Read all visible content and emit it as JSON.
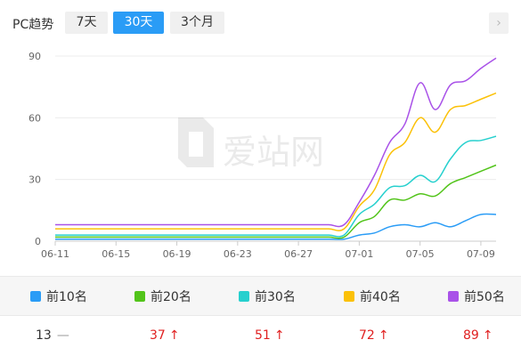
{
  "header": {
    "title": "PC趋势",
    "tabs": [
      {
        "label": "7天",
        "active": false
      },
      {
        "label": "30天",
        "active": true
      },
      {
        "label": "3个月",
        "active": false
      }
    ],
    "next_icon": "chevron-right-icon"
  },
  "watermark": {
    "text": "爱站网",
    "icon": "aizhan-logo-icon"
  },
  "chart_data": {
    "type": "line",
    "ylim": [
      0,
      90
    ],
    "yticks": [
      0,
      30,
      60,
      90
    ],
    "grid": true,
    "x_tick_labels": [
      "06-11",
      "06-15",
      "06-19",
      "06-23",
      "06-27",
      "07-01",
      "07-05",
      "07-09"
    ],
    "x": [
      "06-11",
      "06-12",
      "06-13",
      "06-14",
      "06-15",
      "06-16",
      "06-17",
      "06-18",
      "06-19",
      "06-20",
      "06-21",
      "06-22",
      "06-23",
      "06-24",
      "06-25",
      "06-26",
      "06-27",
      "06-28",
      "06-29",
      "06-30",
      "07-01",
      "07-02",
      "07-03",
      "07-04",
      "07-05",
      "07-06",
      "07-07",
      "07-08",
      "07-09",
      "07-10"
    ],
    "series": [
      {
        "name": "前10名",
        "color": "#2a9cf6",
        "values": [
          1,
          1,
          1,
          1,
          1,
          1,
          1,
          1,
          1,
          1,
          1,
          1,
          1,
          1,
          1,
          1,
          1,
          1,
          1,
          1,
          3,
          4,
          7,
          8,
          7,
          9,
          7,
          10,
          13,
          13
        ]
      },
      {
        "name": "前20名",
        "color": "#52c41a",
        "values": [
          2,
          2,
          2,
          2,
          2,
          2,
          2,
          2,
          2,
          2,
          2,
          2,
          2,
          2,
          2,
          2,
          2,
          2,
          2,
          2,
          9,
          12,
          20,
          20,
          23,
          22,
          28,
          31,
          34,
          37
        ]
      },
      {
        "name": "前30名",
        "color": "#26d0ce",
        "values": [
          3,
          3,
          3,
          3,
          3,
          3,
          3,
          3,
          3,
          3,
          3,
          3,
          3,
          3,
          3,
          3,
          3,
          3,
          3,
          3,
          13,
          18,
          26,
          27,
          32,
          29,
          40,
          48,
          49,
          51
        ]
      },
      {
        "name": "前40名",
        "color": "#fbc108",
        "values": [
          6,
          6,
          6,
          6,
          6,
          6,
          6,
          6,
          6,
          6,
          6,
          6,
          6,
          6,
          6,
          6,
          6,
          6,
          6,
          6,
          17,
          25,
          42,
          48,
          60,
          53,
          64,
          66,
          69,
          72
        ]
      },
      {
        "name": "前50名",
        "color": "#a952e8",
        "values": [
          8,
          8,
          8,
          8,
          8,
          8,
          8,
          8,
          8,
          8,
          8,
          8,
          8,
          8,
          8,
          8,
          8,
          8,
          8,
          8,
          19,
          32,
          48,
          57,
          77,
          64,
          76,
          78,
          84,
          89
        ]
      }
    ]
  },
  "legend": [
    {
      "label": "前10名",
      "color": "#2a9cf6"
    },
    {
      "label": "前20名",
      "color": "#52c41a"
    },
    {
      "label": "前30名",
      "color": "#26d0ce"
    },
    {
      "label": "前40名",
      "color": "#fbc108"
    },
    {
      "label": "前50名",
      "color": "#a952e8"
    }
  ],
  "summary": [
    {
      "value": "13",
      "trend": "flat",
      "symbol": "—",
      "color": "#333333"
    },
    {
      "value": "37",
      "trend": "up",
      "symbol": "↑",
      "color": "#e02020"
    },
    {
      "value": "51",
      "trend": "up",
      "symbol": "↑",
      "color": "#e02020"
    },
    {
      "value": "72",
      "trend": "up",
      "symbol": "↑",
      "color": "#e02020"
    },
    {
      "value": "89",
      "trend": "up",
      "symbol": "↑",
      "color": "#e02020"
    }
  ]
}
